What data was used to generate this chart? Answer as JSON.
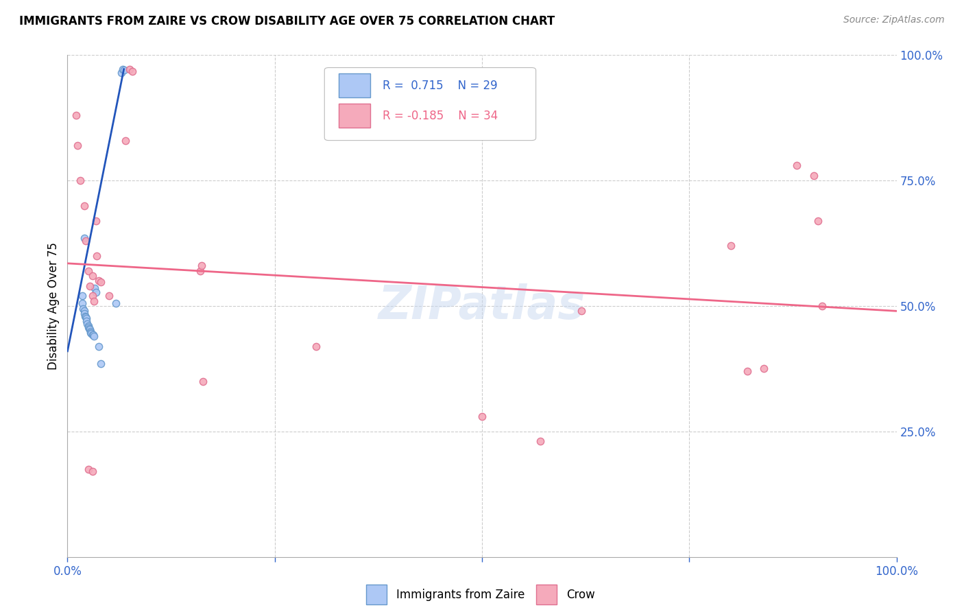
{
  "title": "IMMIGRANTS FROM ZAIRE VS CROW DISABILITY AGE OVER 75 CORRELATION CHART",
  "source": "Source: ZipAtlas.com",
  "ylabel": "Disability Age Over 75",
  "xlim": [
    0,
    1.0
  ],
  "ylim": [
    0,
    1.0
  ],
  "y_tick_values_right": [
    1.0,
    0.75,
    0.5,
    0.25
  ],
  "legend_R1": "R =  0.715",
  "legend_N1": "N = 29",
  "legend_R2": "R = -0.185",
  "legend_N2": "N = 34",
  "color_blue_face": "#adc8f5",
  "color_blue_edge": "#6699cc",
  "color_pink_face": "#f5aabb",
  "color_pink_edge": "#e07090",
  "color_blue_line": "#2255bb",
  "color_pink_line": "#ee6688",
  "watermark": "ZIPatlas",
  "blue_points": [
    [
      0.018,
      0.52
    ],
    [
      0.018,
      0.505
    ],
    [
      0.019,
      0.495
    ],
    [
      0.02,
      0.49
    ],
    [
      0.02,
      0.485
    ],
    [
      0.021,
      0.48
    ],
    [
      0.022,
      0.478
    ],
    [
      0.023,
      0.475
    ],
    [
      0.023,
      0.47
    ],
    [
      0.024,
      0.465
    ],
    [
      0.025,
      0.46
    ],
    [
      0.025,
      0.458
    ],
    [
      0.026,
      0.455
    ],
    [
      0.027,
      0.453
    ],
    [
      0.028,
      0.45
    ],
    [
      0.028,
      0.447
    ],
    [
      0.029,
      0.445
    ],
    [
      0.03,
      0.443
    ],
    [
      0.031,
      0.442
    ],
    [
      0.032,
      0.44
    ],
    [
      0.033,
      0.535
    ],
    [
      0.034,
      0.527
    ],
    [
      0.038,
      0.42
    ],
    [
      0.058,
      0.505
    ],
    [
      0.065,
      0.965
    ],
    [
      0.067,
      0.972
    ],
    [
      0.068,
      0.97
    ],
    [
      0.02,
      0.635
    ],
    [
      0.04,
      0.385
    ]
  ],
  "pink_points": [
    [
      0.01,
      0.88
    ],
    [
      0.012,
      0.82
    ],
    [
      0.015,
      0.75
    ],
    [
      0.02,
      0.7
    ],
    [
      0.022,
      0.63
    ],
    [
      0.025,
      0.57
    ],
    [
      0.027,
      0.54
    ],
    [
      0.03,
      0.56
    ],
    [
      0.03,
      0.52
    ],
    [
      0.032,
      0.51
    ],
    [
      0.034,
      0.67
    ],
    [
      0.035,
      0.6
    ],
    [
      0.038,
      0.55
    ],
    [
      0.04,
      0.548
    ],
    [
      0.05,
      0.52
    ],
    [
      0.07,
      0.83
    ],
    [
      0.075,
      0.972
    ],
    [
      0.078,
      0.968
    ],
    [
      0.16,
      0.57
    ],
    [
      0.162,
      0.58
    ],
    [
      0.163,
      0.35
    ],
    [
      0.3,
      0.42
    ],
    [
      0.5,
      0.28
    ],
    [
      0.57,
      0.23
    ],
    [
      0.62,
      0.49
    ],
    [
      0.8,
      0.62
    ],
    [
      0.82,
      0.37
    ],
    [
      0.84,
      0.375
    ],
    [
      0.88,
      0.78
    ],
    [
      0.9,
      0.76
    ],
    [
      0.905,
      0.67
    ],
    [
      0.91,
      0.5
    ],
    [
      0.025,
      0.175
    ],
    [
      0.03,
      0.17
    ]
  ],
  "blue_line_x": [
    0.0,
    0.068
  ],
  "blue_line_y": [
    0.41,
    0.972
  ],
  "pink_line_x": [
    0.0,
    1.0
  ],
  "pink_line_y": [
    0.585,
    0.49
  ],
  "background_color": "#ffffff",
  "grid_color": "#cccccc"
}
